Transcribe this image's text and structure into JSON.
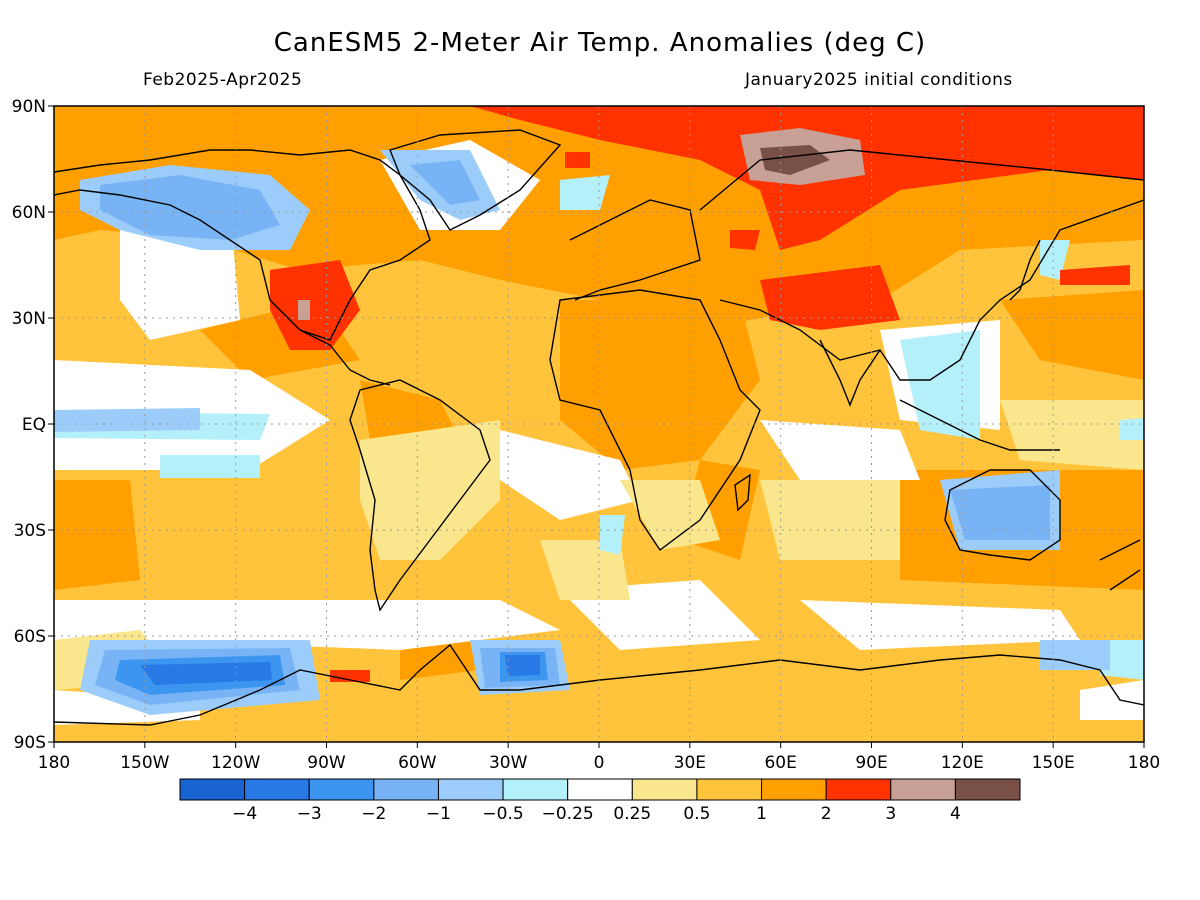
{
  "header": {
    "title": "CanESM5 2-Meter Air Temp. Anomalies (deg C)",
    "period": "Feb2025-Apr2025",
    "init": "January2025 initial conditions"
  },
  "axes": {
    "lon_labels": [
      "180",
      "150W",
      "120W",
      "90W",
      "60W",
      "30W",
      "0",
      "30E",
      "60E",
      "90E",
      "120E",
      "150E",
      "180"
    ],
    "lon_values": [
      -180,
      -150,
      -120,
      -90,
      -60,
      -30,
      0,
      30,
      60,
      90,
      120,
      150,
      180
    ],
    "lat_labels": [
      "90N",
      "60N",
      "30N",
      "EQ",
      "30S",
      "60S",
      "90S"
    ],
    "lat_values": [
      90,
      60,
      30,
      0,
      -30,
      -60,
      -90
    ]
  },
  "legend": {
    "colors": [
      "#1a64d2",
      "#2878e6",
      "#3c96f0",
      "#78b4f5",
      "#9ccdfa",
      "#b4f0fa",
      "#ffffff",
      "#fae68c",
      "#ffc43c",
      "#ffa000",
      "#ff3200",
      "#c8a096",
      "#785046"
    ],
    "labels": [
      "−4",
      "−3",
      "−2",
      "−1",
      "−0.5",
      "−0.25",
      "0.25",
      "0.5",
      "1",
      "2",
      "3",
      "4"
    ]
  },
  "colors": {
    "base_fill": "#ffc43c",
    "land_outline": "#000000",
    "grid": "#999999"
  }
}
